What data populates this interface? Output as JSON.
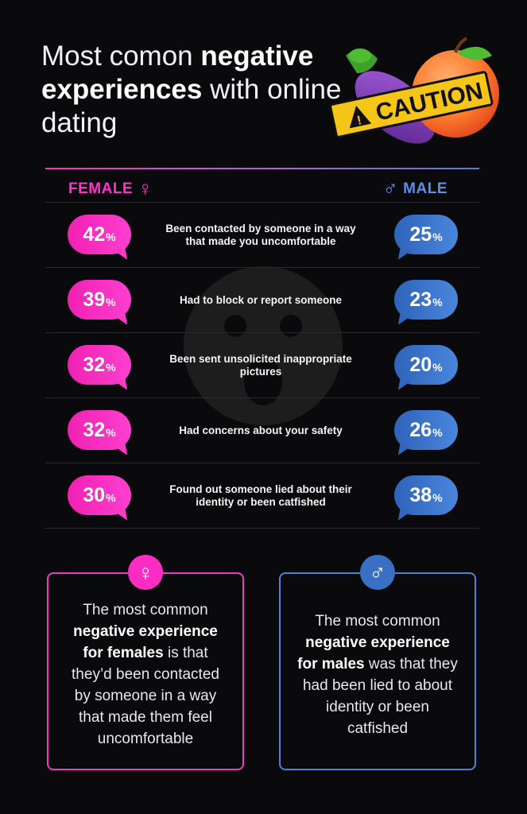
{
  "title": {
    "part1": "Most comon ",
    "bold1": "negative experiences",
    "part2": " with online dating"
  },
  "caution_label": "CAUTION",
  "header": {
    "female_label": "FEMALE",
    "male_label": "MALE",
    "female_symbol": "♀",
    "male_symbol": "♂"
  },
  "colors": {
    "female": "#ff33cc",
    "male": "#4a86dd"
  },
  "chart_data": {
    "type": "table",
    "columns": [
      "FEMALE",
      "MALE"
    ],
    "unit": "%",
    "rows": [
      {
        "label": "Been contacted by someone in a way that made you uncomfortable",
        "female": 42,
        "male": 25
      },
      {
        "label": "Had to block or report someone",
        "female": 39,
        "male": 23
      },
      {
        "label": "Been sent unsolicited inappropriate pictures",
        "female": 32,
        "male": 20
      },
      {
        "label": "Had concerns about your safety",
        "female": 32,
        "male": 26
      },
      {
        "label": "Found out someone lied about their identity or been catfished",
        "female": 30,
        "male": 38
      }
    ]
  },
  "cards": {
    "female": {
      "icon": "female-symbol-icon",
      "pre": "The most common ",
      "bold": "negative experience for females",
      "post": " is that they’d been contacted by someone in a way that made them feel uncomfortable"
    },
    "male": {
      "icon": "male-symbol-icon",
      "pre": "The most common ",
      "bold": "negative experience for males",
      "post": " was that they had been lied to about identity or been catfished"
    }
  }
}
